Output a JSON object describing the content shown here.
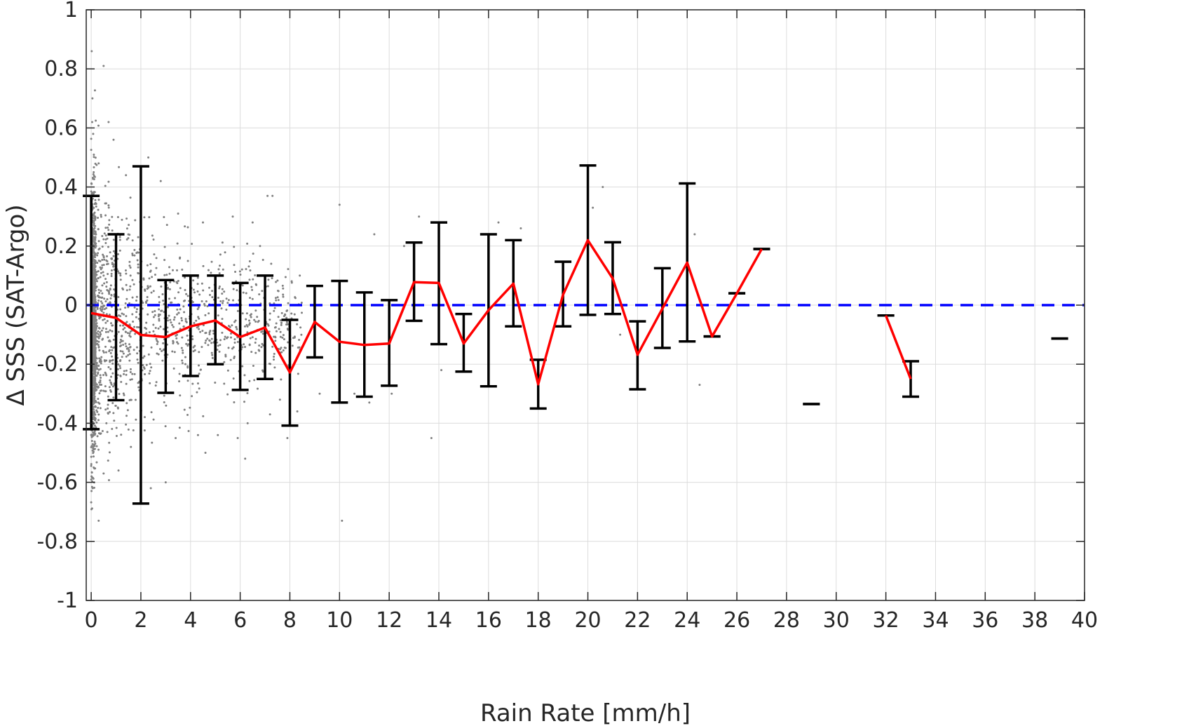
{
  "chart_data": {
    "type": "line",
    "title": "",
    "xlabel": "Rain Rate [mm/h]",
    "ylabel": "Δ SSS (SAT-Argo)",
    "xlim": [
      -0.2,
      40
    ],
    "ylim": [
      -1,
      1
    ],
    "xticks": [
      0,
      2,
      4,
      6,
      8,
      10,
      12,
      14,
      16,
      18,
      20,
      22,
      24,
      26,
      28,
      30,
      32,
      34,
      36,
      38,
      40
    ],
    "yticks": [
      -1,
      -0.8,
      -0.6,
      -0.4,
      -0.2,
      0,
      0.2,
      0.4,
      0.6,
      0.8,
      1
    ],
    "xtick_labels": [
      "0",
      "2",
      "4",
      "6",
      "8",
      "10",
      "12",
      "14",
      "16",
      "18",
      "20",
      "22",
      "24",
      "26",
      "28",
      "30",
      "32",
      "34",
      "36",
      "38",
      "40"
    ],
    "ytick_labels": [
      "-1",
      "-0.8",
      "-0.6",
      "-0.4",
      "-0.2",
      "0",
      "0.2",
      "0.4",
      "0.6",
      "0.8",
      "1"
    ],
    "grid": true,
    "colors": {
      "mean": "#ff0000",
      "reference": "#0000ff",
      "errorbar": "#000000",
      "scatter": "#808080"
    },
    "reference_line": {
      "y": 0,
      "style": "dashed"
    },
    "series": [
      {
        "kind": "mean_with_std",
        "x": [
          0,
          1,
          2,
          3,
          4,
          5,
          6,
          7,
          8,
          9,
          10,
          11,
          12,
          13,
          14,
          15,
          16,
          17,
          18,
          19,
          20,
          21,
          22,
          23,
          24,
          25,
          26,
          27,
          29,
          32,
          33,
          39
        ],
        "mean": [
          -0.027,
          -0.043,
          -0.101,
          -0.108,
          -0.072,
          -0.052,
          -0.108,
          -0.076,
          -0.228,
          -0.057,
          -0.124,
          -0.135,
          -0.13,
          0.078,
          0.075,
          -0.13,
          -0.017,
          0.073,
          -0.268,
          0.035,
          0.22,
          0.09,
          -0.168,
          -0.012,
          0.144,
          -0.106,
          0.04,
          0.19,
          -0.335,
          -0.035,
          -0.25,
          -0.113
        ],
        "upper": [
          0.37,
          0.24,
          0.47,
          0.085,
          0.1,
          0.1,
          0.075,
          0.1,
          -0.05,
          0.065,
          0.082,
          0.043,
          0.017,
          0.212,
          0.28,
          -0.03,
          0.24,
          0.22,
          -0.185,
          0.147,
          0.473,
          0.213,
          -0.055,
          0.125,
          0.412,
          -0.106,
          0.04,
          0.19,
          -0.335,
          -0.035,
          -0.19,
          -0.113
        ],
        "lower": [
          -0.42,
          -0.322,
          -0.672,
          -0.297,
          -0.24,
          -0.2,
          -0.287,
          -0.25,
          -0.408,
          -0.177,
          -0.33,
          -0.31,
          -0.273,
          -0.053,
          -0.132,
          -0.225,
          -0.275,
          -0.072,
          -0.35,
          -0.072,
          -0.033,
          -0.03,
          -0.285,
          -0.145,
          -0.123,
          -0.106,
          0.04,
          0.19,
          -0.335,
          -0.035,
          -0.31,
          -0.113
        ],
        "line_segments": [
          [
            0,
            27
          ],
          [
            32,
            33
          ]
        ]
      }
    ],
    "scatter_points": [
      [
        0.02,
        0.86
      ],
      [
        0.05,
        0.7
      ],
      [
        0.04,
        0.62
      ],
      [
        0.08,
        0.58
      ],
      [
        0.5,
        0.81
      ],
      [
        0.1,
        0.45
      ],
      [
        0.3,
        0.48
      ],
      [
        0.7,
        0.62
      ],
      [
        0.9,
        0.56
      ],
      [
        1.4,
        0.44
      ],
      [
        2.3,
        0.5
      ],
      [
        2.8,
        0.42
      ],
      [
        3.5,
        0.31
      ],
      [
        4.5,
        0.28
      ],
      [
        5.7,
        0.3
      ],
      [
        6.5,
        0.28
      ],
      [
        7.1,
        0.37
      ],
      [
        7.3,
        0.37
      ],
      [
        6.8,
        0.2
      ],
      [
        8.4,
        0.1
      ],
      [
        10.0,
        0.34
      ],
      [
        11.4,
        0.24
      ],
      [
        12.6,
        0.2
      ],
      [
        13.2,
        0.3
      ],
      [
        17.3,
        0.26
      ],
      [
        20.2,
        0.33
      ],
      [
        20.6,
        0.4
      ],
      [
        24.3,
        0.24
      ],
      [
        16.4,
        0.28
      ],
      [
        0.3,
        -0.73
      ],
      [
        0.06,
        -0.62
      ],
      [
        0.1,
        -0.55
      ],
      [
        0.5,
        -0.57
      ],
      [
        1.1,
        -0.56
      ],
      [
        1.6,
        -0.48
      ],
      [
        2.4,
        -0.62
      ],
      [
        3.0,
        -0.6
      ],
      [
        3.4,
        -0.45
      ],
      [
        4.3,
        -0.44
      ],
      [
        4.6,
        -0.5
      ],
      [
        5.1,
        -0.44
      ],
      [
        5.9,
        -0.45
      ],
      [
        6.2,
        -0.52
      ],
      [
        6.3,
        -0.4
      ],
      [
        7.2,
        -0.37
      ],
      [
        7.6,
        -0.32
      ],
      [
        7.9,
        -0.45
      ],
      [
        8.3,
        -0.36
      ],
      [
        9.2,
        -0.3
      ],
      [
        10.1,
        -0.73
      ],
      [
        10.6,
        -0.3
      ],
      [
        13.7,
        -0.45
      ],
      [
        14.1,
        -0.22
      ],
      [
        21.3,
        -0.1
      ],
      [
        24.5,
        -0.27
      ],
      [
        11.2,
        -0.33
      ],
      [
        12.1,
        -0.3
      ]
    ]
  }
}
